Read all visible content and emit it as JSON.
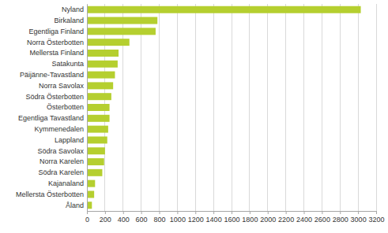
{
  "chart_data": {
    "type": "bar",
    "orientation": "horizontal",
    "categories": [
      "Nyland",
      "Birkaland",
      "Egentliga Finland",
      "Norra Österbotten",
      "Mellersta Finland",
      "Satakunta",
      "Päijänne-Tavastland",
      "Norra Savolax",
      "Södra Österbotten",
      "Österbotten",
      "Egentliga Tavastland",
      "Kymmenedalen",
      "Lappland",
      "Södra Savolax",
      "Norra Karelen",
      "Södra Karelen",
      "Kajanaland",
      "Mellersta Österbotten",
      "Åland"
    ],
    "values": [
      3030,
      780,
      760,
      470,
      350,
      340,
      310,
      290,
      270,
      250,
      250,
      235,
      225,
      200,
      190,
      170,
      90,
      80,
      55
    ],
    "color": "#b5cf2f",
    "xlim": [
      0,
      3200
    ],
    "xticks": [
      0,
      200,
      400,
      600,
      800,
      1000,
      1200,
      1400,
      1600,
      1800,
      2000,
      2200,
      2400,
      2600,
      2800,
      3000,
      3200
    ],
    "grid": true
  }
}
